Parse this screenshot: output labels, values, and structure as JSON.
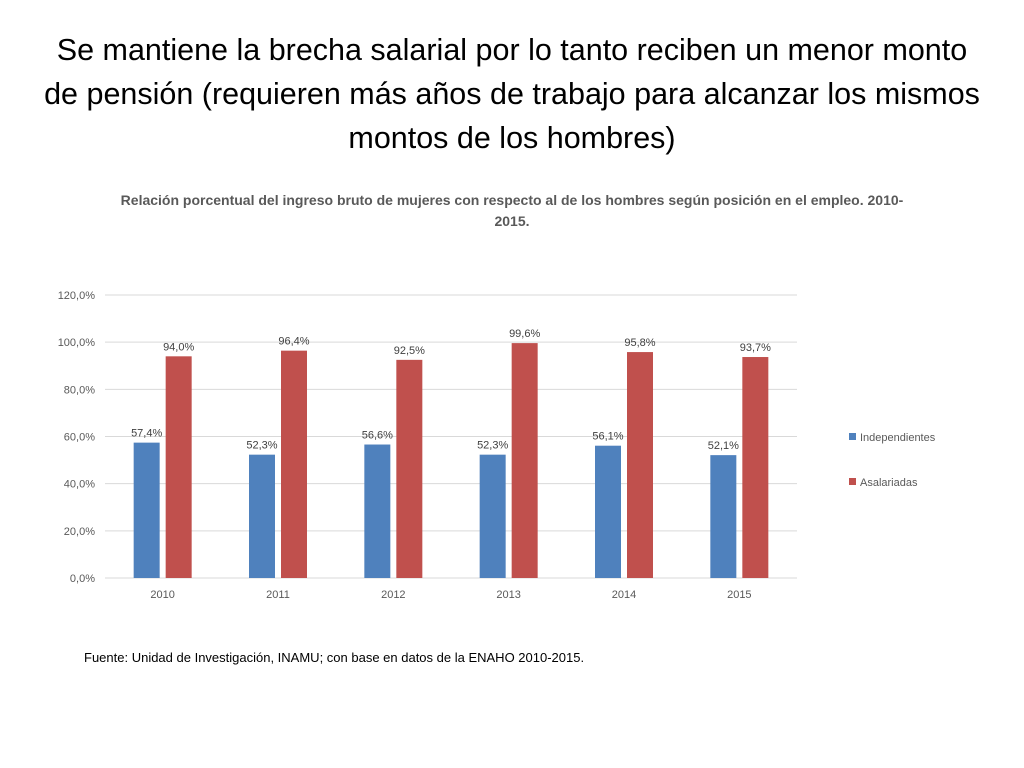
{
  "slide": {
    "title": "Se mantiene la brecha salarial por lo tanto reciben un menor monto de pensión (requieren más años de trabajo para alcanzar los mismos montos de los hombres)",
    "source": "Fuente: Unidad de Investigación, INAMU; con base en datos de la ENAHO 2010-2015."
  },
  "chart_data": {
    "type": "bar",
    "title": "Relación porcentual del ingreso bruto de mujeres con respecto al de los hombres según posición en el empleo. 2010-2015.",
    "categories": [
      "2010",
      "2011",
      "2012",
      "2013",
      "2014",
      "2015"
    ],
    "series": [
      {
        "name": "Independientes",
        "color": "#4F81BD",
        "values": [
          57.4,
          52.3,
          56.6,
          52.3,
          56.1,
          52.1
        ],
        "labels": [
          "57,4%",
          "52,3%",
          "56,6%",
          "52,3%",
          "56,1%",
          "52,1%"
        ]
      },
      {
        "name": "Asalariadas",
        "color": "#C0504D",
        "values": [
          94.0,
          96.4,
          92.5,
          99.6,
          95.8,
          93.7
        ],
        "labels": [
          "94,0%",
          "96,4%",
          "92,5%",
          "99,6%",
          "95,8%",
          "93,7%"
        ]
      }
    ],
    "ylim": [
      0,
      120
    ],
    "yticks": [
      0,
      20,
      40,
      60,
      80,
      100,
      120
    ],
    "ytick_labels": [
      "0,0%",
      "20,0%",
      "40,0%",
      "60,0%",
      "80,0%",
      "100,0%",
      "120,0%"
    ],
    "grid": true,
    "legend_position": "right",
    "xlabel": "",
    "ylabel": ""
  }
}
